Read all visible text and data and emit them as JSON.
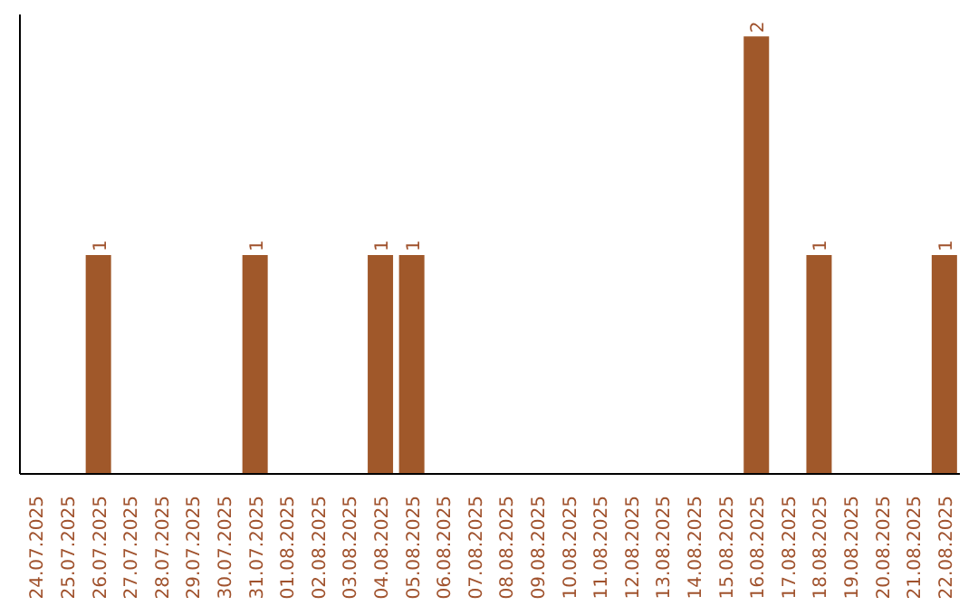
{
  "chart_data": {
    "type": "bar",
    "categories": [
      "24.07.2025",
      "25.07.2025",
      "26.07.2025",
      "27.07.2025",
      "28.07.2025",
      "29.07.2025",
      "30.07.2025",
      "31.07.2025",
      "01.08.2025",
      "02.08.2025",
      "03.08.2025",
      "04.08.2025",
      "05.08.2025",
      "06.08.2025",
      "07.08.2025",
      "08.08.2025",
      "09.08.2025",
      "10.08.2025",
      "11.08.2025",
      "12.08.2025",
      "13.08.2025",
      "14.08.2025",
      "15.08.2025",
      "16.08.2025",
      "17.08.2025",
      "18.08.2025",
      "19.08.2025",
      "20.08.2025",
      "21.08.2025",
      "22.08.2025"
    ],
    "values": [
      null,
      null,
      1,
      null,
      null,
      null,
      null,
      1,
      null,
      null,
      null,
      1,
      1,
      null,
      null,
      null,
      null,
      null,
      null,
      null,
      null,
      null,
      null,
      2,
      null,
      1,
      null,
      null,
      null,
      1
    ],
    "color": "#a0582a",
    "ylim": [
      0,
      2.1
    ],
    "data_labels": true,
    "tick_labels": "x",
    "grid": false,
    "legend": false
  }
}
